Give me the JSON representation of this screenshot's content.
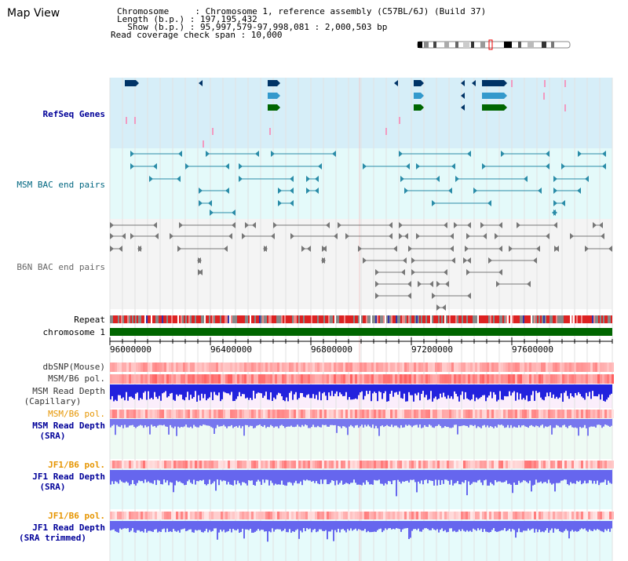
{
  "header": {
    "title": "Map View",
    "chromosome_line": "Chromosome     : Chromosome 1, reference assembly (C57BL/6J) (Build 37)",
    "length_line": "Length (b.p.) : 197,195,432",
    "show_line": "  Show (b.p.) : 95,997,579-97,998,081 : 2,000,503 bp",
    "span_line": "Read coverage check span : 10,000"
  },
  "tracks": {
    "refseq": "RefSeq Genes",
    "msm_bac": "MSM BAC end pairs",
    "b6n_bac": "B6N BAC end pairs",
    "repeat": "Repeat",
    "chromosome": "chromosome 1",
    "dbsnp": "dbSNP(Mouse)",
    "msm_b6_pol_1": "MSM/B6 pol.",
    "msm_depth_cap_1": "MSM Read Depth",
    "msm_depth_cap_2": "(Capillary)",
    "msm_b6_pol_2": "MSM/B6 pol.",
    "msm_depth_sra_1": "MSM Read Depth",
    "msm_depth_sra_2": "(SRA)",
    "jf1_b6_pol_1": "JF1/B6 pol.",
    "jf1_depth_sra_1": "JF1 Read Depth",
    "jf1_depth_sra_2": "(SRA)",
    "jf1_b6_pol_2": "JF1/B6 pol.",
    "jf1_depth_trim_1": "JF1 Read Depth",
    "jf1_depth_trim_2": "(SRA trimmed)"
  },
  "axis": {
    "ticks": [
      "96000000",
      "96400000",
      "96800000",
      "97200000",
      "97600000"
    ]
  },
  "colors": {
    "refseq_bg": "#d6eef8",
    "msm_bac_bg": "#e4fafa",
    "b6n_bac_bg": "#f4f4f4",
    "refseq_label": "#000099",
    "msm_label": "#006680",
    "b6n_label": "#666666",
    "pol_orange": "#e69500",
    "depth_blue": "#000099",
    "gene_navy": "#003366",
    "gene_teal": "#3399cc",
    "gene_green": "#006600",
    "chrom_green": "#006600"
  }
}
